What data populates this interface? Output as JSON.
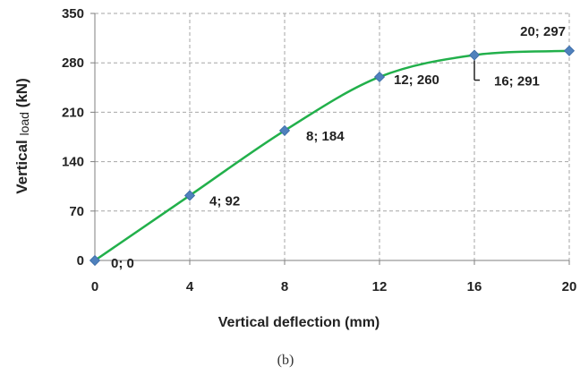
{
  "chart_data": {
    "type": "line",
    "x": [
      0,
      4,
      8,
      12,
      16,
      20
    ],
    "series": [
      {
        "values": [
          0,
          92,
          184,
          260,
          291,
          297
        ]
      }
    ],
    "data_labels": [
      "0; 0",
      "4; 92",
      "8; 184",
      "12; 260",
      "16; 291",
      "20; 297"
    ],
    "xlabel": "Vertical deflection (mm)",
    "ylabel_prefix": "Vertical ",
    "ylabel_subscript": "load",
    "ylabel_suffix": " (kN)",
    "xlim": [
      0,
      20
    ],
    "ylim": [
      0,
      350
    ],
    "xticks": [
      0,
      4,
      8,
      12,
      16,
      20
    ],
    "yticks": [
      0,
      70,
      140,
      210,
      280,
      350
    ],
    "grid": true,
    "line_color": "#22b04b",
    "marker_color": "#4f81bd",
    "caption": "(b)"
  }
}
